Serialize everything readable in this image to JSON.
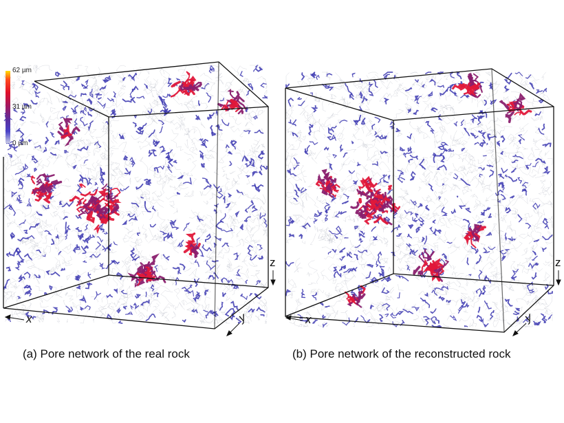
{
  "colorbar": {
    "labels": {
      "max": "62 µm",
      "mid": "31 µm",
      "min": "0 µm"
    },
    "gradient_colors": [
      "#ffe000",
      "#ff4a1e",
      "#e0102a",
      "#a4185e",
      "#5a2fa0",
      "#4a43c8",
      "#c9cbe6"
    ]
  },
  "panels": [
    {
      "caption": "(a) Pore network of the real rock",
      "axes": {
        "x": "x",
        "y": "y",
        "z": "z"
      }
    },
    {
      "caption": "(b) Pore network of the reconstructed rock",
      "axes": {
        "x": "x",
        "y": "y",
        "z": "z"
      }
    }
  ],
  "colors": {
    "network_fine": "#b8bcc6",
    "network_pore": "#3b37b0",
    "network_hot": "#e0183a",
    "cube_edge": "#111111"
  }
}
